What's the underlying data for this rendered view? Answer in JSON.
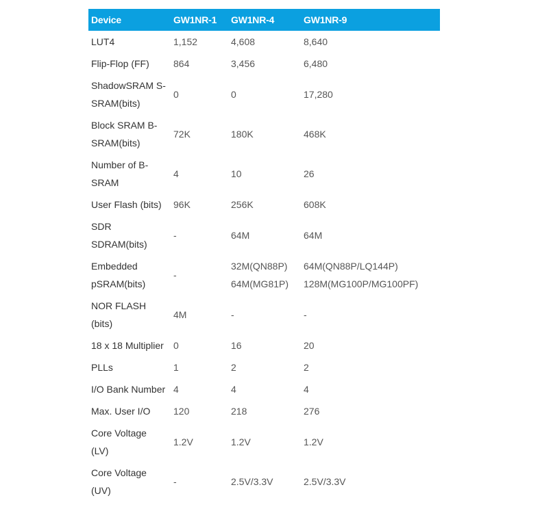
{
  "table": {
    "headers": [
      "Device",
      "GW1NR-1",
      "GW1NR-4",
      "GW1NR-9"
    ],
    "header_color": "#0ba0e0",
    "rows": [
      {
        "label": [
          "LUT4"
        ],
        "values": [
          [
            "1,152"
          ],
          [
            "4,608"
          ],
          [
            "8,640"
          ]
        ]
      },
      {
        "label": [
          "Flip-Flop (FF)"
        ],
        "values": [
          [
            "864"
          ],
          [
            "3,456"
          ],
          [
            "6,480"
          ]
        ]
      },
      {
        "label": [
          "ShadowSRAM S-",
          "SRAM(bits)"
        ],
        "values": [
          [
            "0"
          ],
          [
            "0"
          ],
          [
            "17,280"
          ]
        ]
      },
      {
        "label": [
          "Block SRAM B-",
          "SRAM(bits)"
        ],
        "values": [
          [
            "72K"
          ],
          [
            "180K"
          ],
          [
            "468K"
          ]
        ]
      },
      {
        "label": [
          "Number of B-",
          "SRAM"
        ],
        "values": [
          [
            "4"
          ],
          [
            "10"
          ],
          [
            "26"
          ]
        ]
      },
      {
        "label": [
          "User Flash (bits)"
        ],
        "values": [
          [
            "96K"
          ],
          [
            "256K"
          ],
          [
            "608K"
          ]
        ]
      },
      {
        "label": [
          "SDR",
          "SDRAM(bits)"
        ],
        "values": [
          [
            "-"
          ],
          [
            "64M"
          ],
          [
            "64M"
          ]
        ]
      },
      {
        "label": [
          "Embedded",
          "pSRAM(bits)"
        ],
        "values": [
          [
            "-"
          ],
          [
            "32M(QN88P)",
            "64M(MG81P)"
          ],
          [
            "64M(QN88P/LQ144P)",
            "128M(MG100P/MG100PF)"
          ]
        ]
      },
      {
        "label": [
          "NOR FLASH",
          "(bits)"
        ],
        "values": [
          [
            "4M"
          ],
          [
            "-"
          ],
          [
            "-"
          ]
        ]
      },
      {
        "label": [
          "18 x 18 Multiplier"
        ],
        "values": [
          [
            "0"
          ],
          [
            "16"
          ],
          [
            "20"
          ]
        ]
      },
      {
        "label": [
          "PLLs"
        ],
        "values": [
          [
            "1"
          ],
          [
            "2"
          ],
          [
            "2"
          ]
        ]
      },
      {
        "label": [
          "I/O Bank Number"
        ],
        "values": [
          [
            "4"
          ],
          [
            "4"
          ],
          [
            "4"
          ]
        ]
      },
      {
        "label": [
          "Max. User I/O"
        ],
        "values": [
          [
            "120"
          ],
          [
            "218"
          ],
          [
            "276"
          ]
        ]
      },
      {
        "label": [
          "Core Voltage",
          "(LV)"
        ],
        "values": [
          [
            "1.2V"
          ],
          [
            "1.2V"
          ],
          [
            "1.2V"
          ]
        ]
      },
      {
        "label": [
          "Core Voltage",
          "(UV)"
        ],
        "values": [
          [
            "-"
          ],
          [
            "2.5V/3.3V"
          ],
          [
            "2.5V/3.3V"
          ]
        ]
      }
    ]
  }
}
